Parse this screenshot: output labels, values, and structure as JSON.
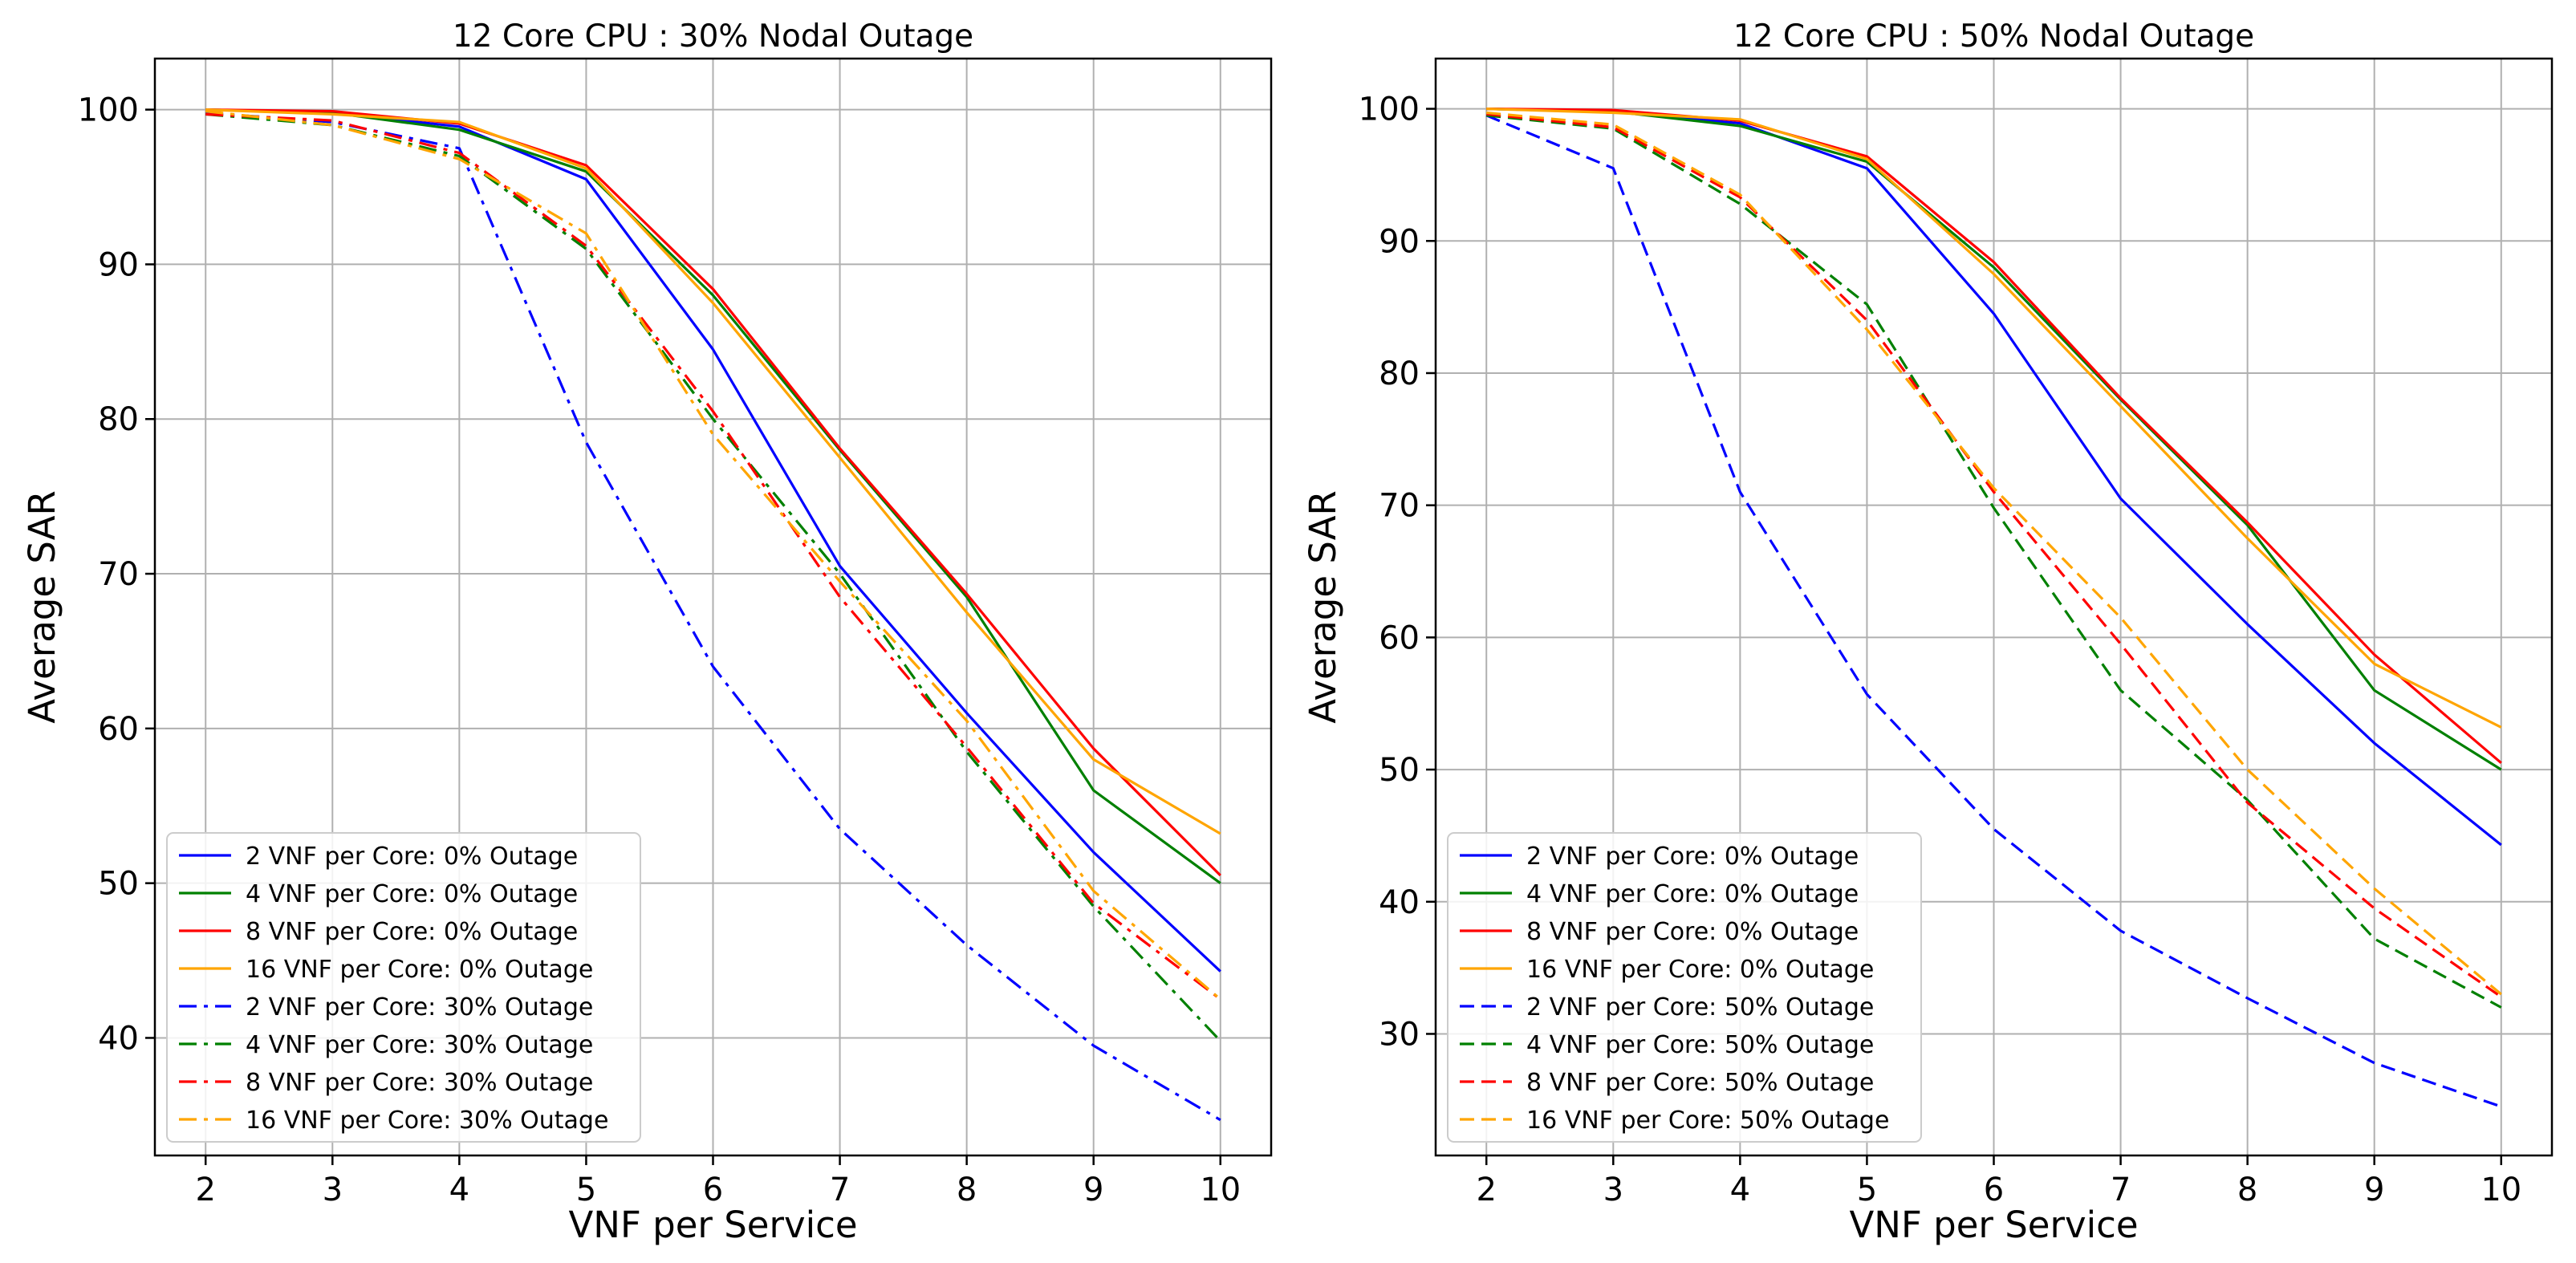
{
  "chart_data": [
    {
      "type": "line",
      "title": "12 Core CPU : 30% Nodal Outage",
      "xlabel": "VNF per Service",
      "ylabel": "Average SAR",
      "x": [
        2,
        3,
        4,
        5,
        6,
        7,
        8,
        9,
        10
      ],
      "xlim": [
        1.6,
        10.4
      ],
      "ylim": [
        32.4,
        103.3
      ],
      "xticks": [
        "2",
        "3",
        "4",
        "5",
        "6",
        "7",
        "8",
        "9",
        "10"
      ],
      "yticks": [
        "40",
        "50",
        "60",
        "70",
        "80",
        "90",
        "100"
      ],
      "grid": true,
      "legend_position": "lower-left",
      "series": [
        {
          "name": "2 VNF per Core: 0% Outage",
          "color": "#0000ff",
          "style": "solid",
          "values": [
            100,
            99.8,
            98.9,
            95.5,
            84.5,
            70.5,
            61,
            52,
            44.3
          ]
        },
        {
          "name": "4 VNF per Core: 0% Outage",
          "color": "#008000",
          "style": "solid",
          "values": [
            100,
            99.8,
            98.7,
            96,
            88,
            78,
            68.5,
            56,
            50
          ]
        },
        {
          "name": "8 VNF per Core: 0% Outage",
          "color": "#ff0000",
          "style": "solid",
          "values": [
            100,
            99.9,
            99.1,
            96.4,
            88.4,
            78.1,
            68.7,
            58.7,
            50.5
          ]
        },
        {
          "name": "16 VNF per Core: 0% Outage",
          "color": "#ffa500",
          "style": "solid",
          "values": [
            100,
            99.7,
            99.2,
            96.2,
            87.5,
            77.5,
            67.5,
            58,
            53.2
          ]
        },
        {
          "name": "2 VNF per Core: 30% Outage",
          "color": "#0000ff",
          "style": "dashdot",
          "values": [
            99.8,
            99.2,
            97.5,
            78.5,
            64,
            53.5,
            46,
            39.5,
            34.7
          ]
        },
        {
          "name": "4 VNF per Core: 30% Outage",
          "color": "#008000",
          "style": "dashdot",
          "values": [
            99.7,
            99,
            97,
            91,
            80,
            70,
            58.5,
            48.5,
            39.8
          ]
        },
        {
          "name": "8 VNF per Core: 30% Outage",
          "color": "#ff0000",
          "style": "dashdot",
          "values": [
            99.7,
            99.3,
            97.2,
            91.2,
            80.5,
            68.5,
            58.8,
            48.7,
            42.5
          ]
        },
        {
          "name": "16 VNF per Core: 30% Outage",
          "color": "#ffa500",
          "style": "dashdot",
          "values": [
            99.9,
            99,
            96.8,
            92,
            79,
            69.5,
            60.5,
            49.5,
            42.5
          ]
        }
      ]
    },
    {
      "type": "line",
      "title": "12 Core CPU : 50% Nodal Outage",
      "xlabel": "VNF per Service",
      "ylabel": "Average SAR",
      "x": [
        2,
        3,
        4,
        5,
        6,
        7,
        8,
        9,
        10
      ],
      "xlim": [
        1.6,
        10.4
      ],
      "ylim": [
        20.8,
        103.8
      ],
      "xticks": [
        "2",
        "3",
        "4",
        "5",
        "6",
        "7",
        "8",
        "9",
        "10"
      ],
      "yticks": [
        "30",
        "40",
        "50",
        "60",
        "70",
        "80",
        "90",
        "100"
      ],
      "grid": true,
      "legend_position": "lower-left",
      "series": [
        {
          "name": "2 VNF per Core: 0% Outage",
          "color": "#0000ff",
          "style": "solid",
          "values": [
            100,
            99.8,
            98.9,
            95.5,
            84.5,
            70.5,
            61,
            52,
            44.3
          ]
        },
        {
          "name": "4 VNF per Core: 0% Outage",
          "color": "#008000",
          "style": "solid",
          "values": [
            100,
            99.8,
            98.7,
            96,
            88,
            78,
            68.5,
            56,
            50
          ]
        },
        {
          "name": "8 VNF per Core: 0% Outage",
          "color": "#ff0000",
          "style": "solid",
          "values": [
            100,
            99.9,
            99.1,
            96.4,
            88.4,
            78.1,
            68.7,
            58.7,
            50.5
          ]
        },
        {
          "name": "16 VNF per Core: 0% Outage",
          "color": "#ffa500",
          "style": "solid",
          "values": [
            100,
            99.7,
            99.2,
            96.2,
            87.5,
            77.5,
            67.5,
            58,
            53.2
          ]
        },
        {
          "name": "2 VNF per Core: 50% Outage",
          "color": "#0000ff",
          "style": "dashed",
          "values": [
            99.5,
            95.5,
            71,
            55.7,
            45.5,
            37.8,
            32.7,
            27.8,
            24.5
          ]
        },
        {
          "name": "4 VNF per Core: 50% Outage",
          "color": "#008000",
          "style": "dashed",
          "values": [
            99.5,
            98.5,
            92.8,
            85.2,
            69.8,
            56,
            47.7,
            37.2,
            32
          ]
        },
        {
          "name": "8 VNF per Core: 50% Outage",
          "color": "#ff0000",
          "style": "dashed",
          "values": [
            99.6,
            98.6,
            93.3,
            84,
            71,
            59.5,
            47.5,
            39.5,
            32.8
          ]
        },
        {
          "name": "16 VNF per Core: 50% Outage",
          "color": "#ffa500",
          "style": "dashed",
          "values": [
            99.7,
            98.8,
            93.5,
            83.3,
            71.3,
            61.5,
            50,
            41,
            33
          ]
        }
      ]
    }
  ]
}
